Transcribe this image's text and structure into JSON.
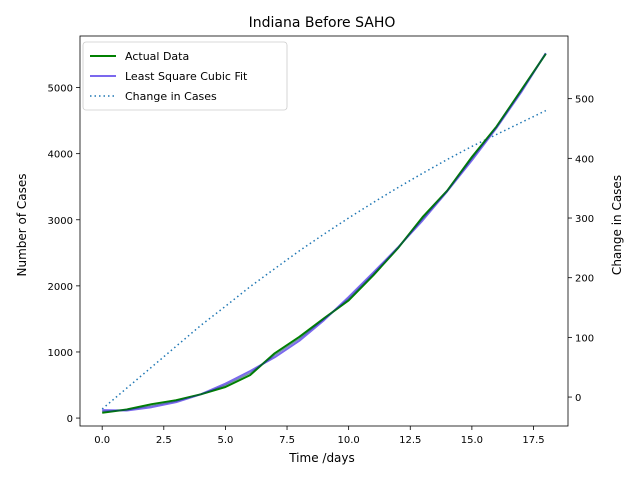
{
  "chart_data": {
    "type": "line",
    "title": "Indiana Before SAHO",
    "xlabel": "Time /days",
    "ylabel": "Number of Cases",
    "y2label": "Change in Cases",
    "xlim": [
      -0.9,
      18.9
    ],
    "ylim": [
      -120,
      5780
    ],
    "y2lim": [
      -48.5,
      605
    ],
    "xticks": [
      "0.0",
      "2.5",
      "5.0",
      "7.5",
      "10.0",
      "12.5",
      "15.0",
      "17.5"
    ],
    "xtick_values": [
      0,
      2.5,
      5,
      7.5,
      10,
      12.5,
      15,
      17.5
    ],
    "yticks": [
      0,
      1000,
      2000,
      3000,
      4000,
      5000
    ],
    "y2ticks": [
      0,
      100,
      200,
      300,
      400,
      500
    ],
    "grid": false,
    "legend": {
      "placement": "top-left",
      "entries": [
        "Actual Data",
        "Least Square Cubic Fit",
        "Change in Cases"
      ]
    },
    "series": [
      {
        "name": "Actual Data",
        "axis": "left",
        "color": "#008000",
        "style": "solid",
        "x": [
          0,
          1,
          2,
          3,
          4,
          5,
          6,
          7,
          8,
          9,
          10,
          11,
          12,
          13,
          14,
          15,
          16,
          17,
          18
        ],
        "values": [
          80,
          130,
          210,
          270,
          360,
          470,
          650,
          980,
          1230,
          1510,
          1780,
          2160,
          2570,
          3040,
          3440,
          3950,
          4410,
          4960,
          5510
        ]
      },
      {
        "name": "Least Square Cubic Fit",
        "axis": "left",
        "color": "#7b68ee",
        "style": "solid",
        "x": [
          0,
          1,
          2,
          3,
          4,
          5,
          6,
          7,
          8,
          9,
          10,
          11,
          12,
          13,
          14,
          15,
          16,
          17,
          18
        ],
        "values": [
          120,
          115,
          165,
          240,
          360,
          520,
          710,
          920,
          1170,
          1480,
          1830,
          2200,
          2580,
          2990,
          3430,
          3900,
          4390,
          4930,
          5520
        ]
      },
      {
        "name": "Change in Cases",
        "axis": "right",
        "color": "#1f77b4",
        "style": "dotted",
        "x": [
          0,
          1,
          2,
          3,
          4,
          5,
          6,
          7,
          8,
          9,
          10,
          11,
          12,
          13,
          14,
          15,
          16,
          17,
          18
        ],
        "values": [
          -20,
          15,
          50,
          85,
          120,
          152,
          185,
          215,
          245,
          273,
          300,
          326,
          351,
          375,
          398,
          420,
          440,
          460,
          480
        ]
      }
    ]
  }
}
